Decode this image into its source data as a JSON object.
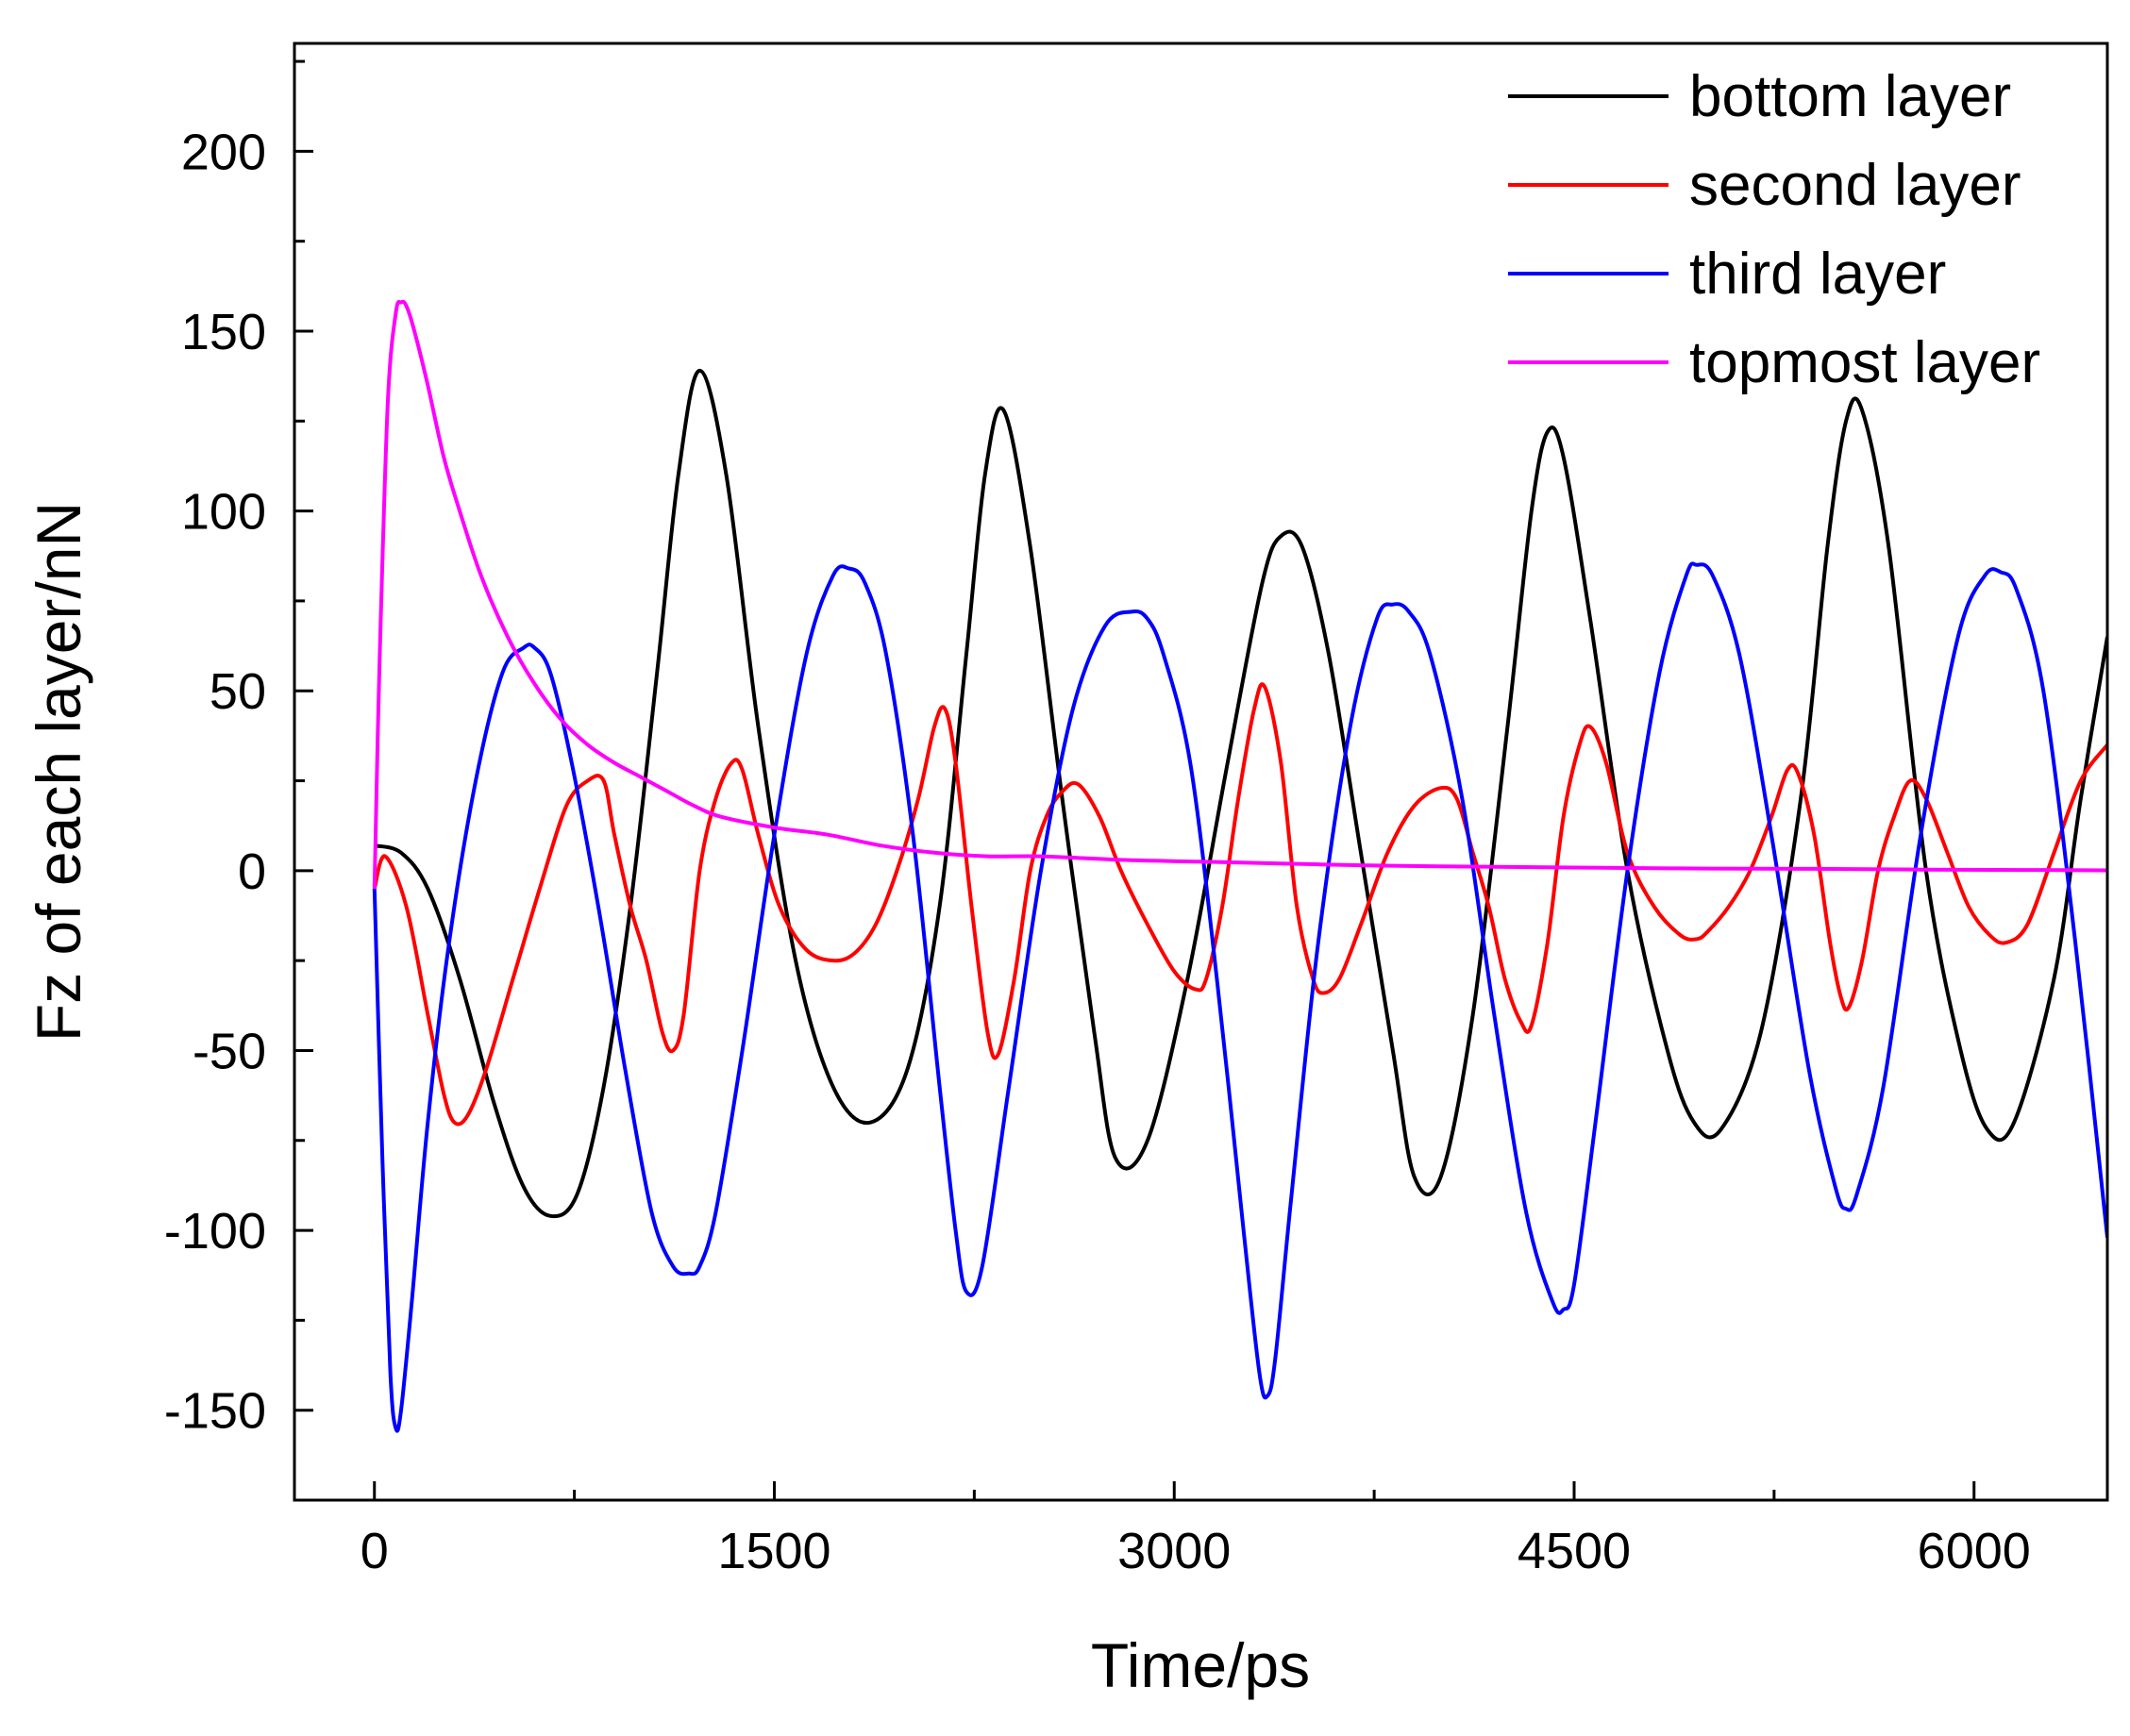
{
  "chart_data": {
    "type": "line",
    "title": "",
    "xlabel": "Time/ps",
    "ylabel": "Fz of each layer/nN",
    "xlim": [
      -300,
      6500
    ],
    "ylim": [
      -175,
      230
    ],
    "xticks": [
      0,
      1500,
      3000,
      4500,
      6000
    ],
    "xtick_labels": [
      "0",
      "1500",
      "3000",
      "4500",
      "6000"
    ],
    "yticks": [
      -150,
      -100,
      -50,
      0,
      50,
      100,
      150,
      200
    ],
    "ytick_labels": [
      "-150",
      "-100",
      "-50",
      "0",
      "50",
      "100",
      "150",
      "200"
    ],
    "grid": false,
    "legend_position": "top-right",
    "series": [
      {
        "name": "bottom layer",
        "color": "#000000",
        "x": [
          0,
          100,
          200,
          320,
          450,
          560,
          660,
          760,
          860,
          960,
          1060,
          1140,
          1220,
          1320,
          1440,
          1580,
          1720,
          1860,
          2000,
          2120,
          2220,
          2290,
          2360,
          2460,
          2580,
          2700,
          2780,
          2900,
          3050,
          3200,
          3330,
          3400,
          3480,
          3580,
          3700,
          3820,
          3900,
          4000,
          4120,
          4250,
          4340,
          4400,
          4460,
          4560,
          4700,
          4850,
          4950,
          5050,
          5200,
          5350,
          5450,
          5520,
          5580,
          5680,
          5820,
          5950,
          6050,
          6150,
          6300,
          6400,
          6500
        ],
        "y": [
          7,
          5,
          -5,
          -30,
          -65,
          -88,
          -96,
          -90,
          -60,
          -10,
          55,
          110,
          139,
          110,
          40,
          -25,
          -60,
          -70,
          -55,
          -10,
          60,
          110,
          128,
          90,
          20,
          -45,
          -80,
          -75,
          -30,
          30,
          80,
          93,
          90,
          60,
          5,
          -50,
          -85,
          -85,
          -40,
          40,
          100,
          122,
          115,
          70,
          0,
          -50,
          -70,
          -72,
          -45,
          20,
          90,
          125,
          128,
          90,
          0,
          -50,
          -72,
          -70,
          -30,
          20,
          65
        ]
      },
      {
        "name": "second layer",
        "color": "#ff0000",
        "x": [
          0,
          40,
          120,
          200,
          260,
          300,
          350,
          420,
          520,
          620,
          720,
          800,
          860,
          900,
          960,
          1020,
          1080,
          1120,
          1160,
          1220,
          1280,
          1340,
          1380,
          1440,
          1520,
          1620,
          1720,
          1800,
          1880,
          1960,
          2040,
          2100,
          2140,
          2180,
          2240,
          2300,
          2340,
          2400,
          2460,
          2520,
          2580,
          2640,
          2720,
          2800,
          2900,
          3000,
          3080,
          3120,
          3180,
          3240,
          3300,
          3340,
          3400,
          3460,
          3520,
          3560,
          3620,
          3700,
          3800,
          3900,
          4000,
          4060,
          4120,
          4180,
          4240,
          4300,
          4340,
          4400,
          4460,
          4520,
          4560,
          4620,
          4700,
          4800,
          4900,
          4960,
          5000,
          5080,
          5160,
          5240,
          5300,
          5340,
          5400,
          5460,
          5500,
          5530,
          5580,
          5640,
          5700,
          5760,
          5820,
          5900,
          5980,
          6060,
          6120,
          6200,
          6300,
          6400,
          6500
        ],
        "y": [
          -5,
          4,
          -10,
          -40,
          -62,
          -70,
          -68,
          -55,
          -30,
          -5,
          18,
          25,
          25,
          10,
          -10,
          -25,
          -45,
          -50,
          -40,
          0,
          20,
          30,
          28,
          10,
          -10,
          -22,
          -25,
          -23,
          -15,
          0,
          20,
          40,
          45,
          30,
          -10,
          -45,
          -51,
          -30,
          0,
          15,
          22,
          24,
          15,
          0,
          -15,
          -28,
          -33,
          -30,
          -10,
          20,
          45,
          51,
          30,
          -10,
          -30,
          -34,
          -30,
          -15,
          5,
          18,
          23,
          20,
          5,
          -10,
          -30,
          -42,
          -43,
          -20,
          15,
          35,
          40,
          30,
          5,
          -10,
          -18,
          -19,
          -17,
          -10,
          0,
          15,
          28,
          27,
          10,
          -20,
          -35,
          -38,
          -25,
          0,
          15,
          25,
          20,
          5,
          -10,
          -18,
          -20,
          -15,
          5,
          25,
          35
        ]
      },
      {
        "name": "third layer",
        "color": "#0000ff",
        "x": [
          0,
          30,
          60,
          80,
          100,
          140,
          200,
          280,
          380,
          480,
          560,
          600,
          660,
          740,
          840,
          940,
          1040,
          1120,
          1180,
          1220,
          1280,
          1380,
          1500,
          1620,
          1720,
          1780,
          1840,
          1920,
          2020,
          2120,
          2180,
          2220,
          2280,
          2380,
          2500,
          2620,
          2740,
          2840,
          2900,
          2960,
          3060,
          3160,
          3260,
          3320,
          3350,
          3380,
          3440,
          3540,
          3660,
          3760,
          3820,
          3880,
          3960,
          4080,
          4200,
          4320,
          4420,
          4460,
          4500,
          4580,
          4700,
          4820,
          4920,
          4960,
          5020,
          5120,
          5240,
          5380,
          5480,
          5520,
          5560,
          5660,
          5800,
          5940,
          6040,
          6100,
          6160,
          6260,
          6380,
          6500
        ],
        "y": [
          -5,
          -80,
          -140,
          -155,
          -150,
          -120,
          -70,
          -20,
          25,
          55,
          62,
          62,
          55,
          30,
          -10,
          -55,
          -95,
          -110,
          -112,
          -110,
          -95,
          -50,
          10,
          60,
          82,
          84,
          80,
          60,
          10,
          -60,
          -100,
          -117,
          -110,
          -60,
          0,
          45,
          68,
          72,
          70,
          60,
          30,
          -30,
          -100,
          -140,
          -146,
          -135,
          -90,
          -20,
          40,
          70,
          74,
          72,
          60,
          20,
          -40,
          -95,
          -120,
          -122,
          -115,
          -70,
          0,
          55,
          82,
          85,
          82,
          60,
          10,
          -55,
          -88,
          -94,
          -90,
          -60,
          10,
          65,
          82,
          83,
          78,
          50,
          -20,
          -102
        ]
      },
      {
        "name": "topmost layer",
        "color": "#ff00ff",
        "x": [
          0,
          20,
          50,
          80,
          100,
          120,
          150,
          200,
          260,
          320,
          400,
          500,
          600,
          700,
          800,
          900,
          1000,
          1100,
          1200,
          1300,
          1500,
          1700,
          1900,
          2100,
          2300,
          2500,
          2800,
          3100,
          3400,
          3700,
          4000,
          4300,
          4600,
          5000,
          5400,
          5800,
          6200,
          6500
        ],
        "y": [
          -5,
          60,
          130,
          155,
          158,
          157,
          150,
          135,
          115,
          100,
          82,
          65,
          52,
          42,
          35,
          30,
          26,
          22,
          18,
          15,
          12,
          10,
          7,
          5,
          4,
          4,
          3,
          2.5,
          2,
          1.5,
          1.2,
          1,
          0.8,
          0.6,
          0.5,
          0.3,
          0.2,
          0.1
        ]
      }
    ]
  }
}
